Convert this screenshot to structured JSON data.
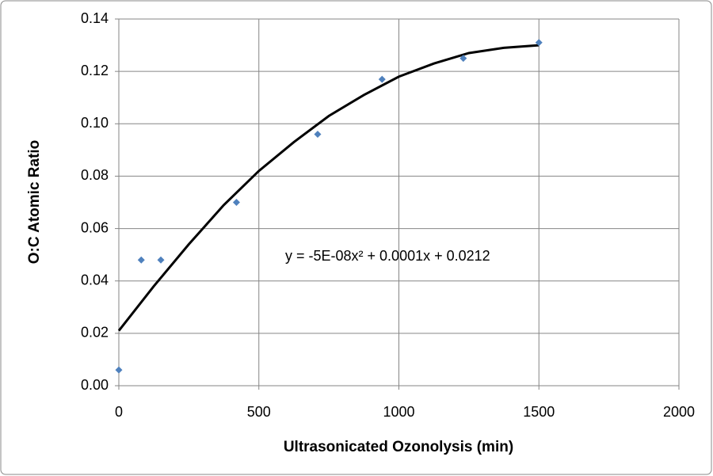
{
  "chart_data": {
    "type": "scatter",
    "x_label": "Ultrasonicated Ozonolysis (min)",
    "y_label": "O:C Atomic Ratio",
    "series": [
      {
        "color": "#4f81bd",
        "x": [
          0,
          80,
          150,
          420,
          710,
          940,
          1230,
          1500
        ],
        "values": [
          0.006,
          0.048,
          0.048,
          0.07,
          0.096,
          0.117,
          0.125,
          0.131
        ]
      }
    ],
    "trendline": {
      "color": "#000000",
      "equation": "y = -5E-08x² + 0.0001x + 0.0212",
      "x": [
        0,
        125,
        250,
        375,
        500,
        625,
        750,
        875,
        1000,
        1125,
        1250,
        1375,
        1500
      ],
      "values": [
        0.021,
        0.038,
        0.054,
        0.069,
        0.082,
        0.093,
        0.103,
        0.111,
        0.118,
        0.123,
        0.127,
        0.129,
        0.13
      ]
    },
    "xlim": [
      0,
      2000
    ],
    "xticks": [
      0,
      500,
      1000,
      1500,
      2000
    ],
    "ylim": [
      0,
      0.14
    ],
    "yticks": [
      {
        "value": 0,
        "label": "0.00"
      },
      {
        "value": 0.02,
        "label": "0.02"
      },
      {
        "value": 0.04,
        "label": "0.04"
      },
      {
        "value": 0.06,
        "label": "0.06"
      },
      {
        "value": 0.08,
        "label": "0.08"
      },
      {
        "value": 0.1,
        "label": "0.10"
      },
      {
        "value": 0.12,
        "label": "0.12"
      },
      {
        "value": 0.14,
        "label": "0.14"
      }
    ],
    "grid": true
  }
}
